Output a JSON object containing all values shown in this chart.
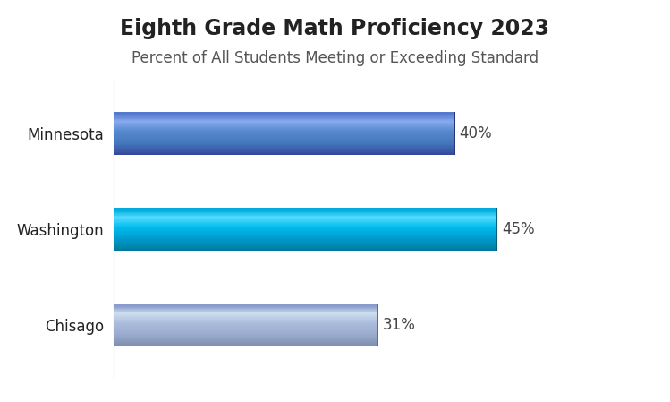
{
  "title": "Eighth Grade Math Proficiency 2023",
  "subtitle": "Percent of All Students Meeting or Exceeding Standard",
  "categories": [
    "Minnesota",
    "Washington",
    "Chisago"
  ],
  "values": [
    40,
    45,
    31
  ],
  "labels": [
    "40%",
    "45%",
    "31%"
  ],
  "bar_gradients": [
    {
      "top_edge": "#5577CC",
      "upper": "#6699DD",
      "mid_light": "#88AAEE",
      "mid": "#5588CC",
      "lower": "#4477BB",
      "bottom_edge": "#334499"
    },
    {
      "top_edge": "#00AADD",
      "upper": "#22CCEE",
      "mid_light": "#55DDFF",
      "mid": "#00BBEE",
      "lower": "#0099CC",
      "bottom_edge": "#007799"
    },
    {
      "top_edge": "#8899CC",
      "upper": "#AABCDD",
      "mid_light": "#CCDDEE",
      "mid": "#AABBDD",
      "lower": "#99AACC",
      "bottom_edge": "#7788AA"
    }
  ],
  "background_color": "#FFFFFF",
  "title_fontsize": 17,
  "subtitle_fontsize": 12,
  "label_fontsize": 12,
  "ytick_fontsize": 12,
  "xlim": [
    0,
    55
  ],
  "title_color": "#222222",
  "subtitle_color": "#555555",
  "label_color": "#444444",
  "spine_color": "#AAAAAA"
}
